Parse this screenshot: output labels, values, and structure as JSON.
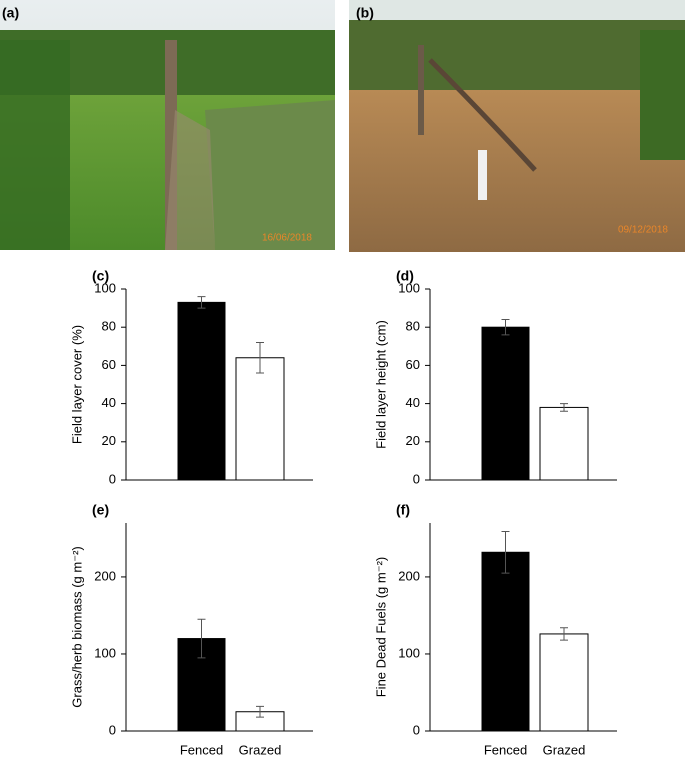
{
  "photos": [
    {
      "label": "(a)",
      "stamp": "16/06/2018"
    },
    {
      "label": "(b)",
      "stamp": "09/12/2018"
    }
  ],
  "chart_data": [
    {
      "type": "bar",
      "panel_label": "(c)",
      "y_label": "Field layer cover (%)",
      "categories": [
        null,
        null
      ],
      "values": [
        93,
        64
      ],
      "errors": [
        3,
        8
      ],
      "colors": [
        "#000000",
        "#ffffff"
      ],
      "ylim": [
        0,
        100
      ],
      "yticks": [
        0,
        20,
        40,
        60,
        80,
        100
      ]
    },
    {
      "type": "bar",
      "panel_label": "(d)",
      "y_label": "Field layer height (cm)",
      "categories": [
        null,
        null
      ],
      "values": [
        80,
        38
      ],
      "errors": [
        4,
        2
      ],
      "colors": [
        "#000000",
        "#ffffff"
      ],
      "ylim": [
        0,
        100
      ],
      "yticks": [
        0,
        20,
        40,
        60,
        80,
        100
      ]
    },
    {
      "type": "bar",
      "panel_label": "(e)",
      "y_label": "Grass/herb biomass (g m⁻²)",
      "categories": [
        "Fenced",
        "Grazed"
      ],
      "values": [
        120,
        25
      ],
      "errors": [
        25,
        7
      ],
      "colors": [
        "#000000",
        "#ffffff"
      ],
      "ylim": [
        0,
        270
      ],
      "yticks": [
        0,
        100,
        200
      ]
    },
    {
      "type": "bar",
      "panel_label": "(f)",
      "y_label": "Fine Dead Fuels (g m⁻²)",
      "categories": [
        "Fenced",
        "Grazed"
      ],
      "values": [
        232,
        126
      ],
      "errors": [
        27,
        8
      ],
      "colors": [
        "#000000",
        "#ffffff"
      ],
      "ylim": [
        0,
        270
      ],
      "yticks": [
        0,
        100,
        200
      ]
    }
  ]
}
